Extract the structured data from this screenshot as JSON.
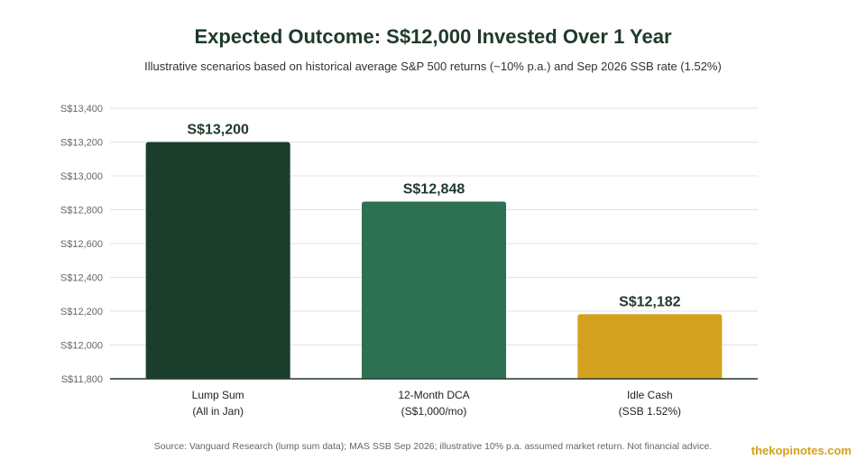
{
  "header": {
    "title": "Expected Outcome: S$12,000 Invested Over 1 Year",
    "subtitle": "Illustrative scenarios based on historical average S&P 500 returns (~10% p.a.) and Sep 2026 SSB rate (1.52%)"
  },
  "footer": {
    "source": "Source: Vanguard Research (lump sum data); MAS SSB Sep 2026; illustrative 10% p.a. assumed market return. Not financial advice.",
    "brand": "thekopinotes.com"
  },
  "colors": {
    "title": "#1e3a2a",
    "brand": "#d4a017"
  },
  "chart_data": {
    "type": "bar",
    "title": "Expected Outcome: S$12,000 Invested Over 1 Year",
    "subtitle": "Illustrative scenarios based on historical average S&P 500 returns (~10% p.a.) and Sep 2026 SSB rate (1.52%)",
    "categories": [
      [
        "Lump Sum",
        "(All in Jan)"
      ],
      [
        "12-Month DCA",
        "(S$1,000/mo)"
      ],
      [
        "Idle Cash",
        "(SSB 1.52%)"
      ]
    ],
    "values": [
      13200,
      12848,
      12182
    ],
    "value_labels": [
      "S$13,200",
      "S$12,848",
      "S$12,182"
    ],
    "bar_colors": [
      "#1b3d2b",
      "#2e7052",
      "#d4a11e"
    ],
    "ylim": [
      11800,
      13400
    ],
    "yticks": [
      11800,
      12000,
      12200,
      12400,
      12600,
      12800,
      13000,
      13200,
      13400
    ],
    "ytick_labels": [
      "S$11,800",
      "S$12,000",
      "S$12,200",
      "S$12,400",
      "S$12,600",
      "S$12,800",
      "S$13,000",
      "S$13,200",
      "S$13,400"
    ],
    "xlabel": "",
    "ylabel": "",
    "grid": true,
    "legend": "none"
  }
}
